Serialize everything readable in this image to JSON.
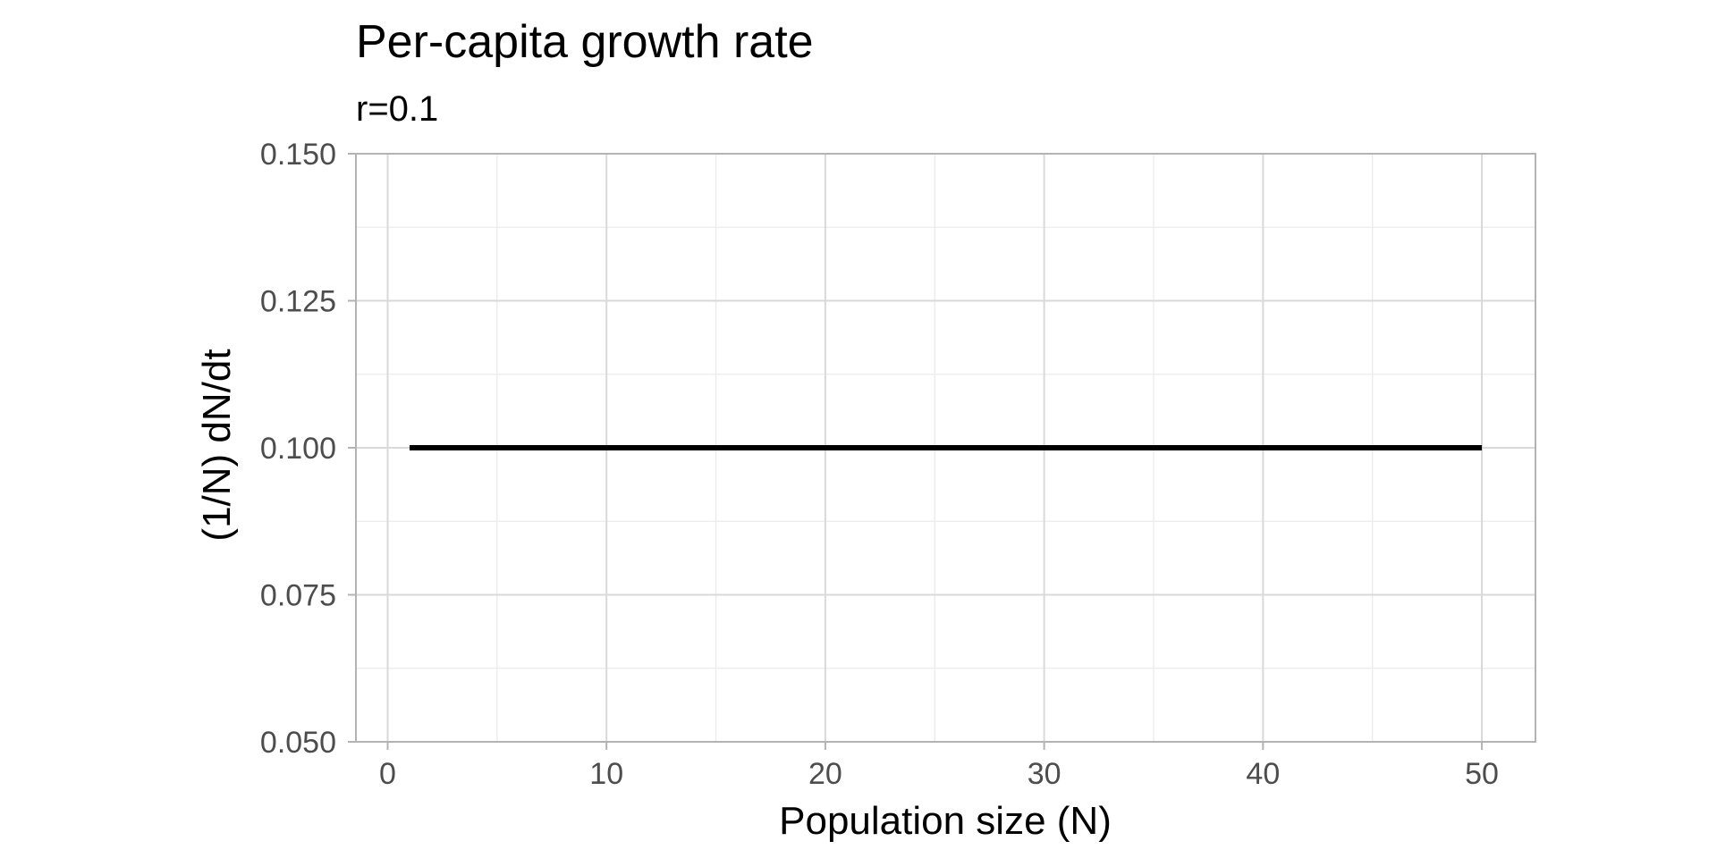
{
  "chart_data": {
    "type": "line",
    "title": "Per-capita growth rate",
    "subtitle": "r=0.1",
    "xlabel": "Population size (N)",
    "ylabel": "(1/N) dN/dt",
    "xlim": [
      -1.45,
      52.45
    ],
    "ylim": [
      0.05,
      0.15
    ],
    "x_ticks": [
      0,
      10,
      20,
      30,
      40,
      50
    ],
    "x_tick_labels": [
      "0",
      "10",
      "20",
      "30",
      "40",
      "50"
    ],
    "y_ticks": [
      0.05,
      0.075,
      0.1,
      0.125,
      0.15
    ],
    "y_tick_labels": [
      "0.050",
      "0.075",
      "0.100",
      "0.125",
      "0.150"
    ],
    "x_minor_ticks": [
      5,
      15,
      25,
      35,
      45
    ],
    "y_minor_ticks": [
      0.0625,
      0.0875,
      0.1125,
      0.1375
    ],
    "grid": true,
    "series": [
      {
        "x": [
          1,
          50
        ],
        "values": [
          0.1,
          0.1
        ],
        "color": "#000000"
      }
    ],
    "colors": {
      "line": "#000000",
      "grid_major": "#d9d9d9",
      "grid_minor": "#ebebeb",
      "panel_border": "#b3b3b3",
      "tick_text": "#4d4d4d"
    }
  }
}
